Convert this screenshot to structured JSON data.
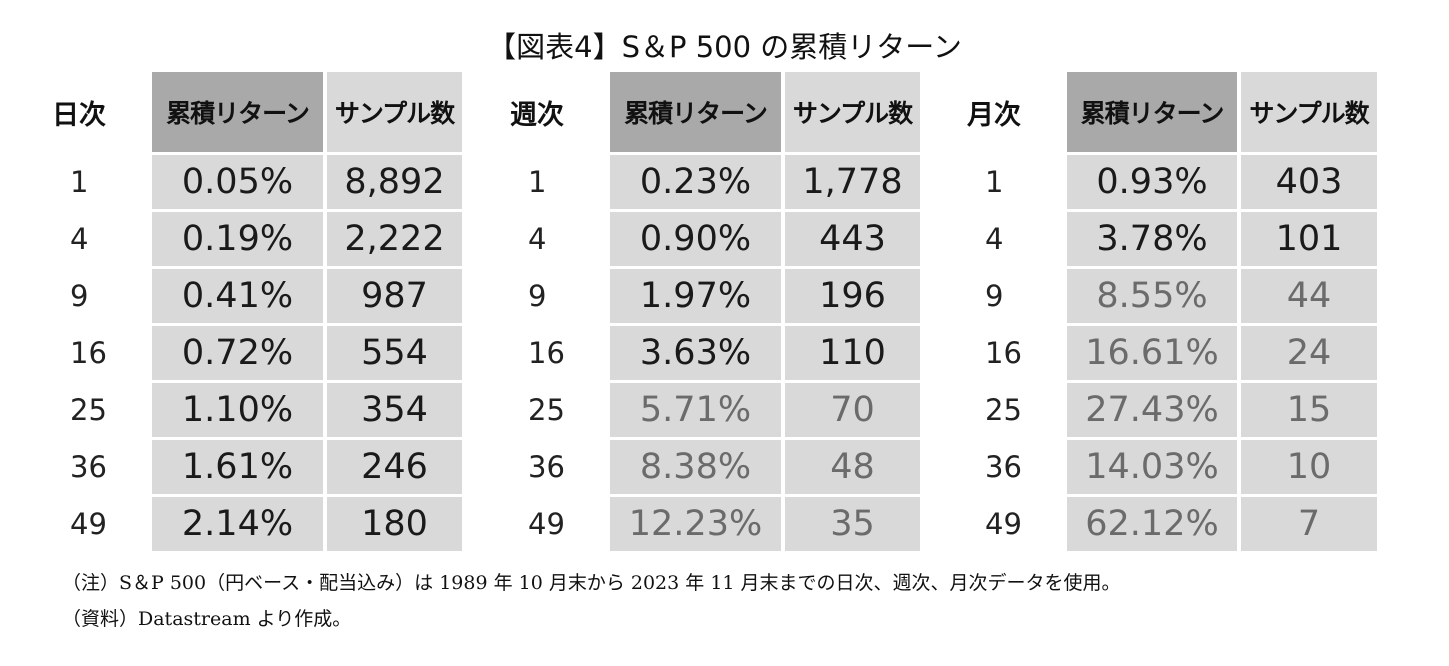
{
  "title": "【図表4】S＆P 500 の累積リターン",
  "headers": {
    "cumulative_return": "累積リターン",
    "sample_count": "サンプル数"
  },
  "groups": [
    {
      "label": "日次",
      "rows": [
        {
          "n": "1",
          "ret": "0.05%",
          "count": "8,892"
        },
        {
          "n": "4",
          "ret": "0.19%",
          "count": "2,222"
        },
        {
          "n": "9",
          "ret": "0.41%",
          "count": "987"
        },
        {
          "n": "16",
          "ret": "0.72%",
          "count": "554"
        },
        {
          "n": "25",
          "ret": "1.10%",
          "count": "354"
        },
        {
          "n": "36",
          "ret": "1.61%",
          "count": "246"
        },
        {
          "n": "49",
          "ret": "2.14%",
          "count": "180"
        }
      ]
    },
    {
      "label": "週次",
      "rows": [
        {
          "n": "1",
          "ret": "0.23%",
          "count": "1,778"
        },
        {
          "n": "4",
          "ret": "0.90%",
          "count": "443"
        },
        {
          "n": "9",
          "ret": "1.97%",
          "count": "196"
        },
        {
          "n": "16",
          "ret": "3.63%",
          "count": "110"
        },
        {
          "n": "25",
          "ret": "5.71%",
          "count": "70"
        },
        {
          "n": "36",
          "ret": "8.38%",
          "count": "48"
        },
        {
          "n": "49",
          "ret": "12.23%",
          "count": "35"
        }
      ]
    },
    {
      "label": "月次",
      "rows": [
        {
          "n": "1",
          "ret": "0.93%",
          "count": "403"
        },
        {
          "n": "4",
          "ret": "3.78%",
          "count": "101"
        },
        {
          "n": "9",
          "ret": "8.55%",
          "count": "44"
        },
        {
          "n": "16",
          "ret": "16.61%",
          "count": "24"
        },
        {
          "n": "25",
          "ret": "27.43%",
          "count": "15"
        },
        {
          "n": "36",
          "ret": "14.03%",
          "count": "10"
        },
        {
          "n": "49",
          "ret": "62.12%",
          "count": "7"
        }
      ]
    }
  ],
  "notes": [
    "（注）S＆P 500（円ベース・配当込み）は 1989 年 10 月末から 2023 年 11 月末までの日次、週次、月次データを使用。",
    "（資料）Datastream より作成。"
  ],
  "colors": {
    "header_dark": "#a9a9a9",
    "cell_bg": "#d9d9d9",
    "text": "#1a1a1a",
    "text_dim": "#6b6b6b"
  }
}
